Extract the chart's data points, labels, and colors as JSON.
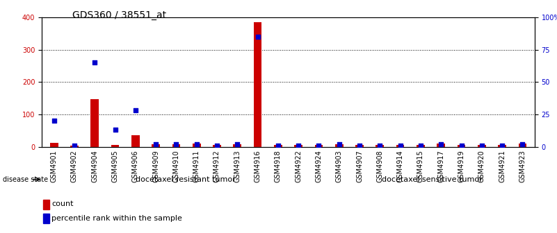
{
  "title": "GDS360 / 38551_at",
  "samples": [
    "GSM4901",
    "GSM4902",
    "GSM4904",
    "GSM4905",
    "GSM4906",
    "GSM4909",
    "GSM4910",
    "GSM4911",
    "GSM4912",
    "GSM4913",
    "GSM4916",
    "GSM4918",
    "GSM4922",
    "GSM4924",
    "GSM4903",
    "GSM4907",
    "GSM4908",
    "GSM4914",
    "GSM4915",
    "GSM4917",
    "GSM4919",
    "GSM4920",
    "GSM4921",
    "GSM4923"
  ],
  "counts": [
    12,
    4,
    148,
    5,
    35,
    8,
    8,
    9,
    5,
    7,
    385,
    5,
    5,
    5,
    7,
    6,
    6,
    5,
    6,
    9,
    5,
    6,
    5,
    9
  ],
  "percentiles": [
    20,
    1,
    65,
    13,
    28,
    2,
    2,
    2,
    1,
    2,
    85,
    1,
    1,
    1,
    2,
    1,
    1,
    1,
    1,
    2,
    1,
    1,
    1,
    2
  ],
  "n_resistant": 14,
  "n_sensitive": 10,
  "resistant_label": "docetaxel resistant tumor",
  "sensitive_label": "docetaxel sensitive tumor",
  "disease_state_label": "disease state",
  "left_ylim": [
    0,
    400
  ],
  "right_ylim": [
    0,
    100
  ],
  "left_yticks": [
    0,
    100,
    200,
    300,
    400
  ],
  "right_yticks": [
    0,
    25,
    50,
    75,
    100
  ],
  "right_yticklabels": [
    "0",
    "25",
    "50",
    "75",
    "100%"
  ],
  "bar_color": "#cc0000",
  "dot_color": "#0000cc",
  "bg_color": "#ffffff",
  "resistant_bg": "#ccffcc",
  "sensitive_bg": "#44cc44",
  "title_fontsize": 10,
  "tick_fontsize": 7,
  "label_fontsize": 8,
  "grid_yticks": [
    100,
    200,
    300
  ]
}
